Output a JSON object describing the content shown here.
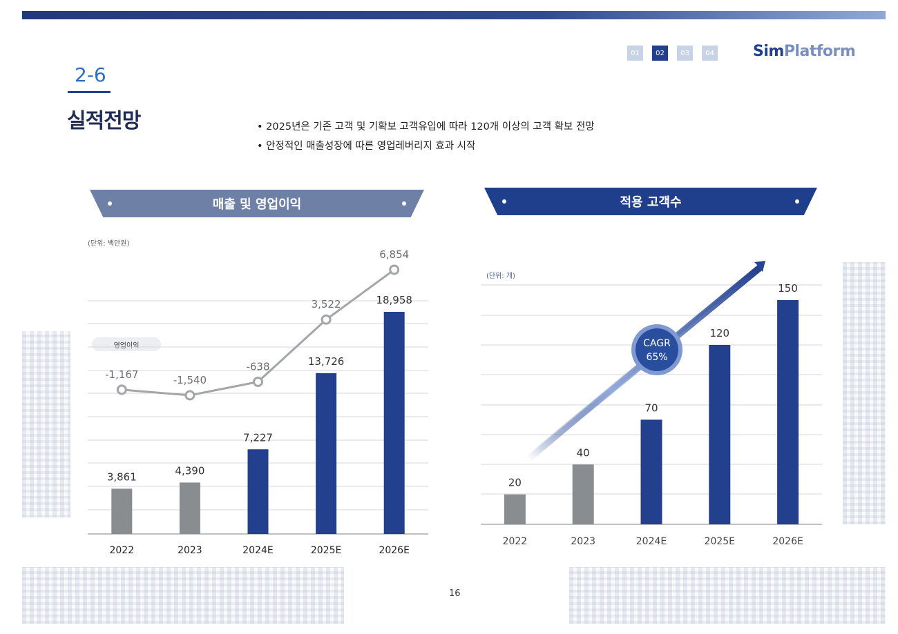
{
  "header": {
    "pages": [
      "01",
      "02",
      "03",
      "04"
    ],
    "active_page": "02",
    "logo_part1": "Sim",
    "logo_part2": "Platform"
  },
  "section": {
    "number": "2-6",
    "title": "실적전망"
  },
  "bullets": [
    "2025년은 기존 고객 및 기확보 고객유입에 따라 120개 이상의 고객 확보 전망",
    "안정적인 매출성장에 따른 영업레버리지 효과 시작"
  ],
  "page_number": "16",
  "colors": {
    "bar_gray": "#8a8d90",
    "bar_blue": "#23408e",
    "line_gray": "#a3a6a8",
    "banner_left": "#6f80a6",
    "banner_right": "#1f3f8c"
  },
  "chart_data": [
    {
      "type": "bar",
      "title": "매출 및 영업이익",
      "unit": "(단위: 백만원)",
      "categories": [
        "2022",
        "2023",
        "2024E",
        "2025E",
        "2026E"
      ],
      "series": [
        {
          "values": [
            3861,
            4390,
            7227,
            13726,
            18958
          ],
          "labels": [
            "3,861",
            "4,390",
            "7,227",
            "13,726",
            "18,958"
          ]
        },
        {
          "name": "영업이익",
          "type": "line",
          "values": [
            -1167,
            -1540,
            -638,
            3522,
            6854
          ],
          "labels": [
            "-1,167",
            "-1,540",
            "-638",
            "3,522",
            "6,854"
          ]
        }
      ],
      "bar_colors": [
        "#8a8d90",
        "#8a8d90",
        "#23408e",
        "#23408e",
        "#23408e"
      ],
      "grid": true
    },
    {
      "type": "bar",
      "title": "적용 고객수",
      "unit": "(단위: 개)",
      "categories": [
        "2022",
        "2023",
        "2024E",
        "2025E",
        "2026E"
      ],
      "series": [
        {
          "values": [
            20,
            40,
            70,
            120,
            150
          ],
          "labels": [
            "20",
            "40",
            "70",
            "120",
            "150"
          ]
        }
      ],
      "bar_colors": [
        "#8a8d90",
        "#8a8d90",
        "#23408e",
        "#23408e",
        "#23408e"
      ],
      "annotation": {
        "line1": "CAGR",
        "line2": "65%"
      },
      "grid": true
    }
  ]
}
